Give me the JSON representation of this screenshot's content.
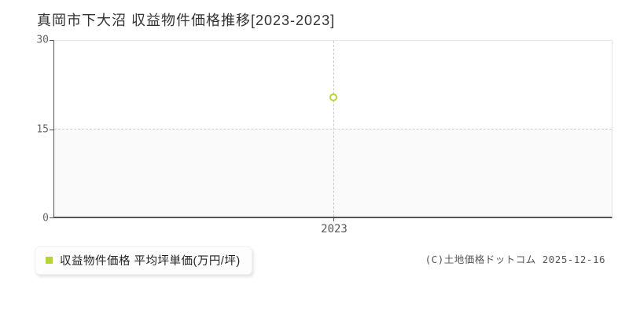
{
  "title": "真岡市下大沼 収益物件価格推移[2023-2023]",
  "copyright": "(C)土地価格ドットコム 2025-12-16",
  "legend": {
    "label": "収益物件価格 平均坪単価(万円/坪)",
    "marker_color": "#b5d435"
  },
  "chart_data": {
    "type": "scatter",
    "title": "真岡市下大沼 収益物件価格推移[2023-2023]",
    "categories": [
      "2023"
    ],
    "series": [
      {
        "name": "収益物件価格 平均坪単価(万円/坪)",
        "values": [
          20.3
        ]
      }
    ],
    "xlabel": "",
    "ylabel": "",
    "ylim": [
      0,
      30
    ],
    "yticks": [
      30,
      15,
      0
    ],
    "legend_position": "bottom-left",
    "grid": {
      "horizontal_dashed_at": 15,
      "vertical_dashed_at": "2023",
      "shaded_band": [
        0,
        15
      ]
    },
    "colors": {
      "point": "#b5d435",
      "axis": "#555555",
      "light_border": "#e5e5e5",
      "dashed_grid": "#cccccc",
      "band_fill": "#fafafa"
    }
  }
}
